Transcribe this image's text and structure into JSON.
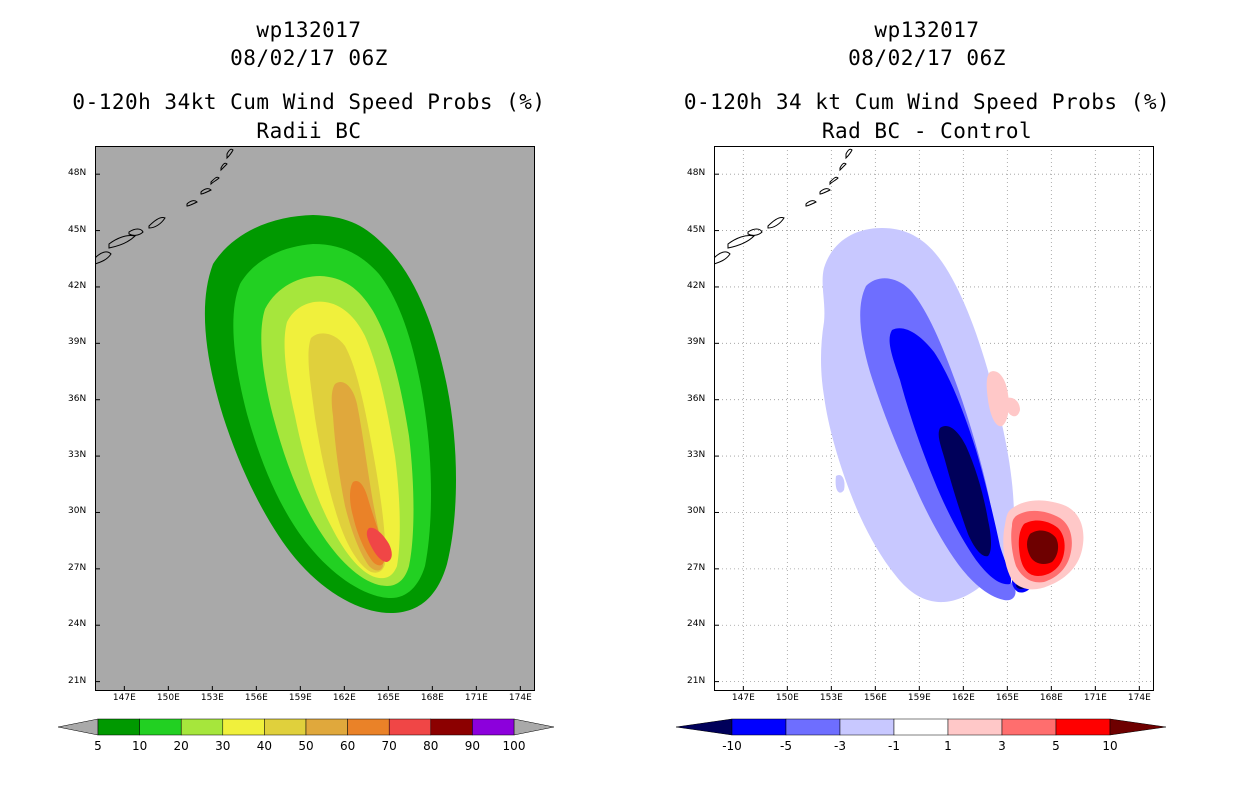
{
  "left": {
    "storm_id": "wp132017",
    "datetime": "08/02/17 06Z",
    "title": "0-120h 34kt Cum Wind Speed Probs (%)",
    "subtitle": "Radii BC",
    "background_color": "#a9a9a9",
    "colorbar_labels": [
      "5",
      "10",
      "20",
      "30",
      "40",
      "50",
      "60",
      "70",
      "80",
      "90",
      "100"
    ],
    "colorbar_colors": [
      "#009900",
      "#22d022",
      "#a6e63c",
      "#f0f03c",
      "#e0d03c",
      "#e0a83c",
      "#ea8228",
      "#f04646",
      "#8c0000",
      "#8c00dc"
    ],
    "field_values": [
      5,
      10,
      20,
      30,
      40,
      50,
      60,
      70
    ]
  },
  "right": {
    "storm_id": "wp132017",
    "datetime": "08/02/17 06Z",
    "title": "0-120h 34 kt Cum Wind Speed Probs (%)",
    "subtitle": "Rad BC - Control",
    "background_color": "#ffffff",
    "colorbar_labels": [
      "-10",
      "-5",
      "-3",
      "-1",
      "1",
      "3",
      "5",
      "10"
    ],
    "colorbar_colors": [
      "#00005a",
      "#0000ff",
      "#6e6eff",
      "#c8c8ff",
      "#ffffff",
      "#ffc8c8",
      "#ff6e6e",
      "#ff0000",
      "#6e0000"
    ],
    "negative_levels": [
      -1,
      -3,
      -5,
      -10
    ],
    "positive_levels": [
      1,
      3,
      5,
      10
    ]
  },
  "axes": {
    "lat_labels": [
      "48N",
      "45N",
      "42N",
      "39N",
      "36N",
      "33N",
      "30N",
      "27N",
      "24N",
      "21N"
    ],
    "lat_values": [
      48,
      45,
      42,
      39,
      36,
      33,
      30,
      27,
      24,
      21
    ],
    "lon_labels": [
      "147E",
      "150E",
      "153E",
      "156E",
      "159E",
      "162E",
      "165E",
      "168E",
      "171E",
      "174E"
    ],
    "lon_values": [
      147,
      150,
      153,
      156,
      159,
      162,
      165,
      168,
      171,
      174
    ],
    "lon_range": [
      145,
      175
    ],
    "lat_range": [
      20.5,
      49.5
    ]
  }
}
